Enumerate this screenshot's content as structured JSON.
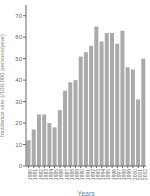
{
  "chart_data": {
    "type": "bar",
    "xlabel": "Years",
    "ylabel": "Incidence rate (/100,000 persons/year)",
    "categories": [
      "1980",
      "1981",
      "1982",
      "1983",
      "1984",
      "1985",
      "1986",
      "1987",
      "1988",
      "1989",
      "1990",
      "1991",
      "1992",
      "1993",
      "1994",
      "1995",
      "1996",
      "1997",
      "1998",
      "1999",
      "2000",
      "2001",
      "2002"
    ],
    "values": [
      12,
      17,
      24,
      24,
      20,
      18,
      26,
      35,
      39,
      40,
      51,
      53,
      56,
      65,
      58,
      62,
      62,
      57,
      63,
      46,
      45,
      31,
      50
    ],
    "color": "#aaaaaa",
    "ylim": [
      0,
      75
    ],
    "yticks": [
      0,
      10,
      20,
      30,
      40,
      50,
      60,
      70
    ],
    "grid": false
  }
}
